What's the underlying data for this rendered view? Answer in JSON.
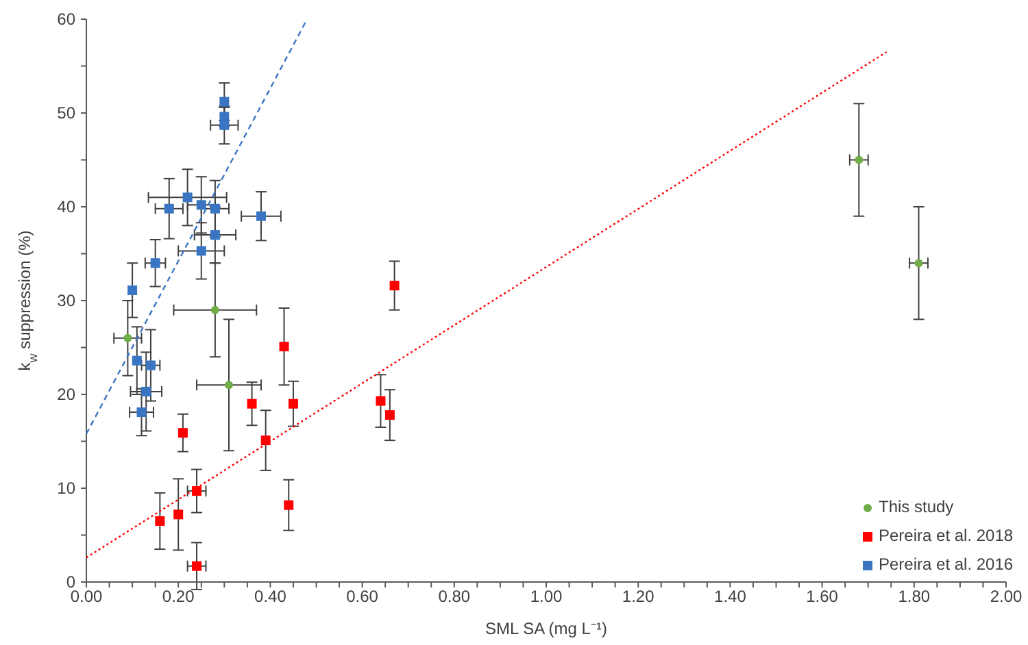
{
  "chart_data": {
    "type": "scatter",
    "xlabel": "SML SA (mg L⁻¹)",
    "ylabel": "k$_{w}$ suppression (%)",
    "xlim": [
      0,
      2
    ],
    "ylim": [
      0,
      60
    ],
    "xticks": [
      {
        "value": 0,
        "label": "0.00"
      },
      {
        "value": 0.05,
        "label": null
      },
      {
        "value": 0.1,
        "label": null
      },
      {
        "value": 0.15,
        "label": null
      },
      {
        "value": 0.2,
        "label": "0.20"
      },
      {
        "value": 0.25,
        "label": null
      },
      {
        "value": 0.3,
        "label": null
      },
      {
        "value": 0.35,
        "label": null
      },
      {
        "value": 0.4,
        "label": "0.40"
      },
      {
        "value": 0.45,
        "label": null
      },
      {
        "value": 0.5,
        "label": null
      },
      {
        "value": 0.55,
        "label": null
      },
      {
        "value": 0.6,
        "label": "0.60"
      },
      {
        "value": 0.65,
        "label": null
      },
      {
        "value": 0.7,
        "label": null
      },
      {
        "value": 0.75,
        "label": null
      },
      {
        "value": 0.8,
        "label": "0.80"
      },
      {
        "value": 0.85,
        "label": null
      },
      {
        "value": 0.9,
        "label": null
      },
      {
        "value": 0.95,
        "label": null
      },
      {
        "value": 1,
        "label": "1.00"
      },
      {
        "value": 1.05,
        "label": null
      },
      {
        "value": 1.1,
        "label": null
      },
      {
        "value": 1.15,
        "label": null
      },
      {
        "value": 1.2,
        "label": "1.20"
      },
      {
        "value": 1.25,
        "label": null
      },
      {
        "value": 1.3,
        "label": null
      },
      {
        "value": 1.35,
        "label": null
      },
      {
        "value": 1.4,
        "label": "1.40"
      },
      {
        "value": 1.45,
        "label": null
      },
      {
        "value": 1.5,
        "label": null
      },
      {
        "value": 1.55,
        "label": null
      },
      {
        "value": 1.6,
        "label": "1.60"
      },
      {
        "value": 1.65,
        "label": null
      },
      {
        "value": 1.7,
        "label": null
      },
      {
        "value": 1.75,
        "label": null
      },
      {
        "value": 1.8,
        "label": "1.80"
      },
      {
        "value": 1.85,
        "label": null
      },
      {
        "value": 1.9,
        "label": null
      },
      {
        "value": 1.95,
        "label": null
      },
      {
        "value": 2,
        "label": "2.00"
      }
    ],
    "yticks": [
      0,
      {
        "value": 5,
        "label": null
      },
      10,
      {
        "value": 15,
        "label": null
      },
      20,
      {
        "value": 25,
        "label": null
      },
      30,
      {
        "value": 35,
        "label": null
      },
      40,
      {
        "value": 45,
        "label": null
      },
      50,
      {
        "value": 55,
        "label": null
      },
      60
    ],
    "grid": false,
    "legend": "bottom right",
    "series": [
      {
        "name": "This study",
        "color": "#70ad47",
        "marker": "circle",
        "x": [
          0.09,
          0.28,
          0.31,
          1.68,
          1.81
        ],
        "values": [
          26.0,
          29.0,
          21.0,
          45.0,
          34.0
        ],
        "errors": [
          4,
          5,
          7,
          6,
          6
        ],
        "xerrors": [
          0.03,
          0.09,
          0.07,
          0.02,
          0.02
        ]
      },
      {
        "name": "Pereira et al. 2018",
        "color": "#ff0000",
        "marker": "square",
        "x": [
          0.16,
          0.2,
          0.21,
          0.24,
          0.24,
          0.36,
          0.39,
          0.43,
          0.44,
          0.45,
          0.64,
          0.66,
          0.67
        ],
        "values": [
          6.5,
          7.2,
          15.9,
          9.7,
          1.7,
          19.0,
          15.1,
          25.1,
          8.2,
          19.0,
          19.3,
          17.8,
          31.6
        ],
        "errors": [
          3,
          3.8,
          2,
          2.3,
          2.5,
          2.3,
          3.2,
          4.1,
          2.7,
          2.4,
          2.8,
          2.7,
          2.6
        ],
        "xerrors": [
          null,
          null,
          null,
          0.02,
          0.02,
          null,
          null,
          null,
          null,
          null,
          null,
          null,
          null
        ]
      },
      {
        "name": "Pereira et al. 2016",
        "color": "#3a75c4",
        "marker": "square",
        "x": [
          0.3,
          0.3,
          0.3,
          0.22,
          0.25,
          0.28,
          0.18,
          0.38,
          0.28,
          0.25,
          0.15,
          0.1,
          0.11,
          0.14,
          0.13,
          0.12
        ],
        "values": [
          51.2,
          49.6,
          48.7,
          41.0,
          40.2,
          39.8,
          39.8,
          39.0,
          37.0,
          35.3,
          34.0,
          31.1,
          23.6,
          23.1,
          20.3,
          18.1
        ],
        "errors": [
          2,
          1,
          2,
          3,
          3,
          3,
          3.2,
          2.6,
          3,
          3,
          2.5,
          2.9,
          3.6,
          3.8,
          4.2,
          2.5
        ],
        "xerrors": [
          null,
          null,
          0.03,
          0.085,
          0.03,
          0.03,
          0.03,
          0.043,
          0.045,
          0.05,
          0.022,
          null,
          null,
          0.02,
          0.034,
          0.026
        ]
      },
      {
        "type": "line",
        "color": "#3a75c4",
        "line_style": "dashed",
        "marker": "none",
        "x": [
          0,
          0.48
        ],
        "values": [
          15.8,
          60
        ]
      },
      {
        "type": "line",
        "color": "#ff0000",
        "line_style": "dotted",
        "marker": "none",
        "x": [
          0,
          1.74
        ],
        "values": [
          2.6,
          56.5
        ]
      }
    ]
  }
}
